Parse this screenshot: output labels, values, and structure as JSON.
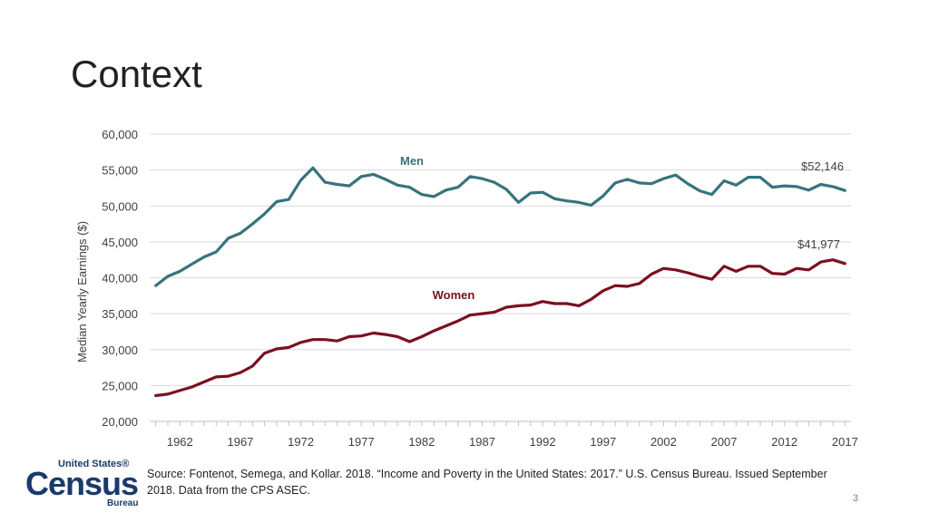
{
  "slide": {
    "title": "Context",
    "source": "Source: Fontenot, Semega, and Kollar. 2018. “Income and Poverty in the United States: 2017.” U.S. Census Bureau. Issued September 2018. Data from the CPS ASEC.",
    "page_number": "3",
    "logo": {
      "top": "United States®",
      "main": "Census",
      "bottom": "Bureau"
    }
  },
  "colors": {
    "men": "#37747c",
    "women": "#7b1020",
    "grid": "#d9d9d9",
    "text": "#404040"
  },
  "chart_data": {
    "type": "line",
    "title": "",
    "xlabel": "",
    "ylabel": "Median Yearly Earnings ($)",
    "ylim": [
      20000,
      60000
    ],
    "yticks": [
      20000,
      25000,
      30000,
      35000,
      40000,
      45000,
      50000,
      55000,
      60000
    ],
    "ytick_labels": [
      "20,000",
      "25,000",
      "30,000",
      "35,000",
      "40,000",
      "45,000",
      "50,000",
      "55,000",
      "60,000"
    ],
    "xlim": [
      1959.5,
      2017.5
    ],
    "xticks": [
      1962,
      1967,
      1972,
      1977,
      1982,
      1987,
      1992,
      1997,
      2002,
      2007,
      2012,
      2017
    ],
    "xtick_labels": [
      "1962",
      "1967",
      "1972",
      "1977",
      "1982",
      "1987",
      "1992",
      "1997",
      "2002",
      "2007",
      "2012",
      "2017"
    ],
    "grid": true,
    "x": [
      1960,
      1961,
      1962,
      1963,
      1964,
      1965,
      1966,
      1967,
      1968,
      1969,
      1970,
      1971,
      1972,
      1973,
      1974,
      1975,
      1976,
      1977,
      1978,
      1979,
      1980,
      1981,
      1982,
      1983,
      1984,
      1985,
      1986,
      1987,
      1988,
      1989,
      1990,
      1991,
      1992,
      1993,
      1994,
      1995,
      1996,
      1997,
      1998,
      1999,
      2000,
      2001,
      2002,
      2003,
      2004,
      2005,
      2006,
      2007,
      2008,
      2009,
      2010,
      2011,
      2012,
      2013,
      2014,
      2015,
      2016,
      2017
    ],
    "series": [
      {
        "name": "Men",
        "color_key": "men",
        "end_label": "$52,146",
        "values": [
          38900,
          40200,
          40900,
          41900,
          42900,
          43600,
          45500,
          46200,
          47500,
          48900,
          50600,
          50900,
          53600,
          55300,
          53300,
          53000,
          52800,
          54100,
          54400,
          53700,
          52900,
          52600,
          51600,
          51300,
          52200,
          52600,
          54100,
          53800,
          53300,
          52300,
          50500,
          51800,
          51900,
          51000,
          50700,
          50500,
          50100,
          51400,
          53200,
          53700,
          53200,
          53100,
          53800,
          54300,
          53100,
          52100,
          51600,
          53500,
          52900,
          54000,
          54000,
          52600,
          52800,
          52700,
          52200,
          53000,
          52700,
          52146
        ]
      },
      {
        "name": "Women",
        "color_key": "women",
        "end_label": "$41,977",
        "values": [
          23600,
          23800,
          24300,
          24800,
          25500,
          26200,
          26300,
          26800,
          27700,
          29500,
          30100,
          30300,
          31000,
          31400,
          31400,
          31200,
          31800,
          31900,
          32300,
          32100,
          31800,
          31100,
          31800,
          32600,
          33300,
          34000,
          34800,
          35000,
          35200,
          35900,
          36100,
          36200,
          36700,
          36400,
          36400,
          36100,
          37000,
          38200,
          38900,
          38800,
          39200,
          40500,
          41300,
          41100,
          40700,
          40200,
          39800,
          41600,
          40900,
          41600,
          41600,
          40600,
          40500,
          41300,
          41100,
          42200,
          42500,
          41977
        ]
      }
    ]
  }
}
